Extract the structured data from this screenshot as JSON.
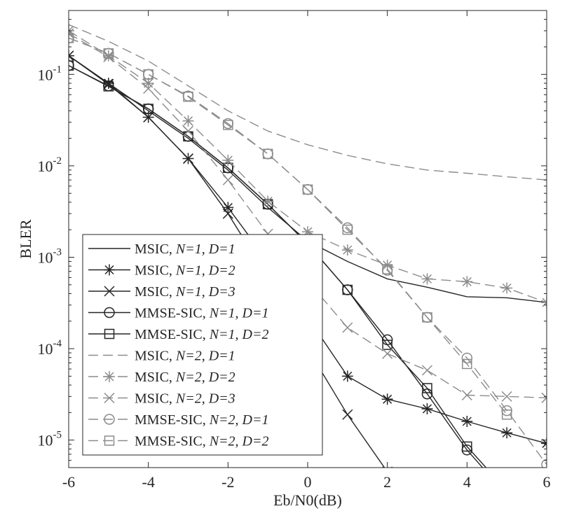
{
  "chart_data": {
    "type": "line",
    "title": "",
    "xlabel": "Eb/N0(dB)",
    "ylabel": "BLER",
    "xlim": [
      -6,
      6
    ],
    "ylim": [
      5e-06,
      0.5
    ],
    "yscale": "log",
    "xticks": [
      -6,
      -4,
      -2,
      0,
      2,
      4,
      6
    ],
    "yticks": [
      {
        "value": 1e-05,
        "base": "10",
        "exp": "-5"
      },
      {
        "value": 0.0001,
        "base": "10",
        "exp": "-4"
      },
      {
        "value": 0.001,
        "base": "10",
        "exp": "-3"
      },
      {
        "value": 0.01,
        "base": "10",
        "exp": "-2"
      },
      {
        "value": 0.1,
        "base": "10",
        "exp": "-1"
      }
    ],
    "grid": false,
    "legend_position": "bottom-left",
    "series": [
      {
        "name_prefix": "MSIC, ",
        "name_params": "N=1, D=1",
        "color": "#262626",
        "dash": false,
        "marker": "none",
        "x": [
          -6,
          -5,
          -4,
          -3,
          -2,
          -1,
          0,
          1,
          2,
          3,
          4,
          5,
          6
        ],
        "y": [
          0.16,
          0.08,
          0.04,
          0.02,
          0.009,
          0.0035,
          0.0015,
          0.0009,
          0.00058,
          0.00047,
          0.00037,
          0.00036,
          0.00032
        ]
      },
      {
        "name_prefix": "MSIC, ",
        "name_params": "N=1, D=2",
        "color": "#262626",
        "dash": false,
        "marker": "asterisk",
        "x": [
          -6,
          -5,
          -4,
          -3,
          -2,
          -1,
          0,
          1,
          2,
          3,
          4,
          5,
          6
        ],
        "y": [
          0.16,
          0.08,
          0.034,
          0.012,
          0.0035,
          0.0009,
          0.00022,
          5e-05,
          2.8e-05,
          2.2e-05,
          1.6e-05,
          1.2e-05,
          9.2e-06
        ]
      },
      {
        "name_prefix": "MSIC, ",
        "name_params": "N=1, D=3",
        "color": "#262626",
        "dash": false,
        "marker": "x",
        "x": [
          -6,
          -5,
          -4,
          -3,
          -2,
          -1,
          0,
          1,
          2
        ],
        "y": [
          0.16,
          0.078,
          0.034,
          0.012,
          0.003,
          0.0006,
          0.0001,
          1.9e-05,
          4.5e-06
        ]
      },
      {
        "name_prefix": "MMSE-SIC, ",
        "name_params": "N=1, D=1",
        "color": "#262626",
        "dash": false,
        "marker": "circle",
        "x": [
          -6,
          -5,
          -4,
          -3,
          -2,
          -1,
          0,
          1,
          2,
          3,
          4,
          5
        ],
        "y": [
          0.125,
          0.075,
          0.042,
          0.021,
          0.0095,
          0.0038,
          0.0014,
          0.00044,
          0.000125,
          3.2e-05,
          7.8e-06,
          2.5e-06
        ]
      },
      {
        "name_prefix": "MMSE-SIC, ",
        "name_params": "N=1, D=2",
        "color": "#262626",
        "dash": false,
        "marker": "square",
        "x": [
          -6,
          -5,
          -4,
          -3,
          -2,
          -1,
          0,
          1,
          2,
          3,
          4,
          5
        ],
        "y": [
          0.125,
          0.074,
          0.042,
          0.021,
          0.0095,
          0.0038,
          0.0014,
          0.00044,
          0.00011,
          3.7e-05,
          8.5e-06,
          2.8e-06
        ]
      },
      {
        "name_prefix": "MSIC, ",
        "name_params": "N=2, D=1",
        "color": "#8c8c8c",
        "dash": true,
        "marker": "none",
        "x": [
          -6,
          -5,
          -4,
          -3,
          -2,
          -1,
          0,
          1,
          2,
          3,
          4,
          5,
          6
        ],
        "y": [
          0.35,
          0.23,
          0.14,
          0.075,
          0.04,
          0.024,
          0.017,
          0.013,
          0.0105,
          0.009,
          0.0083,
          0.0076,
          0.007
        ]
      },
      {
        "name_prefix": "MSIC, ",
        "name_params": "N=2, D=2",
        "color": "#8c8c8c",
        "dash": true,
        "marker": "asterisk",
        "x": [
          -6,
          -5,
          -4,
          -3,
          -2,
          -1,
          0,
          1,
          2,
          3,
          4,
          5,
          6
        ],
        "y": [
          0.3,
          0.16,
          0.08,
          0.031,
          0.0115,
          0.0041,
          0.0019,
          0.0012,
          0.00082,
          0.00058,
          0.00054,
          0.00046,
          0.00032
        ]
      },
      {
        "name_prefix": "MSIC, ",
        "name_params": "N=2, D=3",
        "color": "#8c8c8c",
        "dash": true,
        "marker": "x",
        "x": [
          -6,
          -5,
          -4,
          -3,
          -2,
          -1,
          0,
          1,
          2,
          3,
          4,
          5,
          6
        ],
        "y": [
          0.28,
          0.155,
          0.07,
          0.024,
          0.007,
          0.0018,
          0.00055,
          0.00017,
          8.8e-05,
          5.8e-05,
          3.1e-05,
          3e-05,
          2.9e-05
        ]
      },
      {
        "name_prefix": "MMSE-SIC, ",
        "name_params": "N=2, D=1",
        "color": "#8c8c8c",
        "dash": true,
        "marker": "circle",
        "x": [
          -6,
          -5,
          -4,
          -3,
          -2,
          -1,
          0,
          1,
          2,
          3,
          4,
          5,
          6
        ],
        "y": [
          0.25,
          0.17,
          0.1,
          0.058,
          0.029,
          0.0135,
          0.0055,
          0.0021,
          0.00072,
          0.00022,
          7.9e-05,
          2.1e-05,
          5.4e-06
        ]
      },
      {
        "name_prefix": "MMSE-SIC, ",
        "name_params": "N=2, D=2",
        "color": "#8c8c8c",
        "dash": true,
        "marker": "square",
        "x": [
          -6,
          -5,
          -4,
          -3,
          -2,
          -1,
          0,
          1,
          2,
          3,
          4,
          5
        ],
        "y": [
          0.25,
          0.17,
          0.1,
          0.057,
          0.028,
          0.0135,
          0.0055,
          0.002,
          0.00074,
          0.00022,
          6.8e-05,
          1.9e-05
        ]
      }
    ]
  }
}
